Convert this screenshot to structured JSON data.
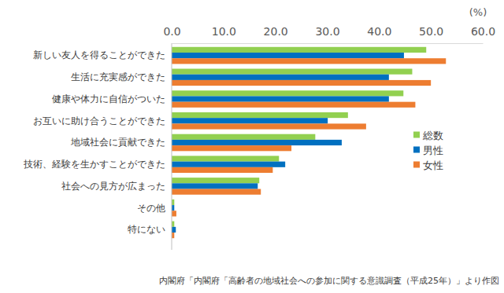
{
  "chart_data": {
    "type": "bar",
    "orientation": "horizontal",
    "xlabel": "(%)",
    "annotations": [
      "内閣府「内閣府「高齢者の地域社会への参加に関する意識調査（平成25年）」より作図"
    ],
    "categories": [
      "新しい友人を得ることができた",
      "生活に充実感ができた",
      "健康や体力に自信がついた",
      "お互いに助け合うことができた",
      "地域社会に貢献できた",
      "技術、経験を生かすことができた",
      "社会への見方が広まった",
      "その他",
      "特にない"
    ],
    "series": [
      {
        "name": "総数",
        "color": "#92d050",
        "values": [
          49.1,
          46.4,
          44.7,
          34.0,
          27.7,
          20.7,
          16.9,
          0.5,
          0.5
        ]
      },
      {
        "name": "男性",
        "color": "#0070c0",
        "values": [
          44.8,
          41.9,
          41.9,
          30.1,
          32.8,
          21.9,
          16.6,
          0.5,
          0.8
        ]
      },
      {
        "name": "女性",
        "color": "#ed7d31",
        "values": [
          52.9,
          50.0,
          47.0,
          37.5,
          23.1,
          19.5,
          17.2,
          0.9,
          0.5
        ]
      }
    ],
    "xlim": [
      0,
      60
    ],
    "xticks": [
      {
        "value": 0,
        "label": "0.0"
      },
      {
        "value": 10,
        "label": "10.0"
      },
      {
        "value": 20,
        "label": "20.0"
      },
      {
        "value": 30,
        "label": "30.0"
      },
      {
        "value": 40,
        "label": "40.0"
      },
      {
        "value": 50,
        "label": "50.0"
      },
      {
        "value": 60,
        "label": "60.0"
      }
    ],
    "grid": false,
    "legend": "right"
  }
}
